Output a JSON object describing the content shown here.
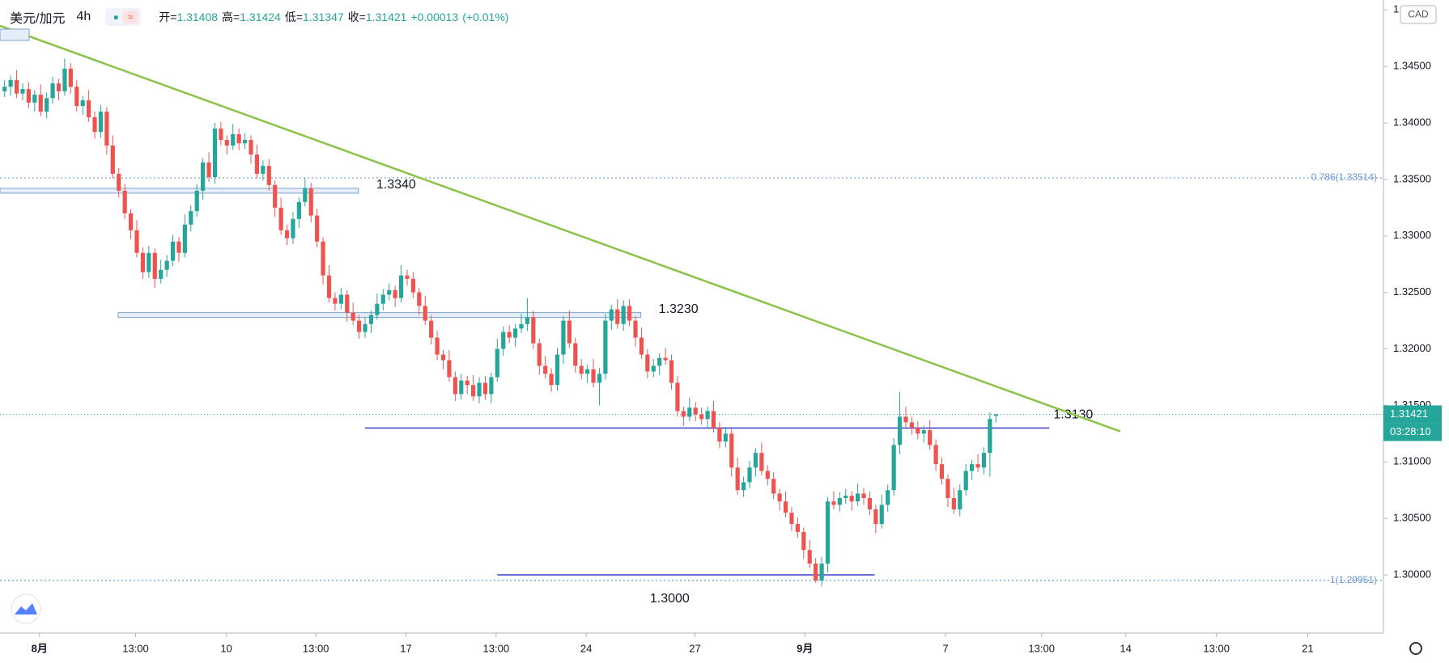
{
  "chart_data": {
    "type": "candlestick",
    "title": "美元/加元",
    "interval": "4h",
    "legend": [
      {
        "label": "开=",
        "value": 1.31408
      },
      {
        "label": "高=",
        "value": 1.31424
      },
      {
        "label": "低=",
        "value": 1.31347
      },
      {
        "label": "收=",
        "value": 1.31421
      }
    ],
    "change": "+0.00013",
    "change_pct": "(+0.01%)",
    "currency": "CAD",
    "countdown": "03:28:10",
    "last_price": 1.31421,
    "up_color": "#26a69a",
    "down_color": "#ef5350",
    "grid": false,
    "open": [
      1.3428,
      1.3432,
      1.3438,
      1.3426,
      1.343,
      1.3418,
      1.3425,
      1.341,
      1.3422,
      1.3435,
      1.3428,
      1.3448,
      1.3432,
      1.3415,
      1.342,
      1.3405,
      1.3392,
      1.341,
      1.338,
      1.3355,
      1.334,
      1.332,
      1.3305,
      1.3285,
      1.3268,
      1.3285,
      1.3262,
      1.327,
      1.3278,
      1.3295,
      1.3285,
      1.331,
      1.3322,
      1.334,
      1.3365,
      1.3352,
      1.3395,
      1.3385,
      1.338,
      1.339,
      1.3382,
      1.3385,
      1.3372,
      1.3355,
      1.3362,
      1.3345,
      1.3325,
      1.3305,
      1.3298,
      1.3315,
      1.333,
      1.3342,
      1.3318,
      1.3295,
      1.3265,
      1.3245,
      1.324,
      1.3248,
      1.3232,
      1.3225,
      1.3215,
      1.3222,
      1.323,
      1.324,
      1.3248,
      1.3252,
      1.3245,
      1.3265,
      1.3262,
      1.325,
      1.3238,
      1.3225,
      1.321,
      1.3195,
      1.319,
      1.3175,
      1.316,
      1.3172,
      1.3168,
      1.3158,
      1.317,
      1.316,
      1.3175,
      1.32,
      1.3215,
      1.321,
      1.3218,
      1.3222,
      1.3228,
      1.3205,
      1.3185,
      1.3178,
      1.3168,
      1.3195,
      1.3225,
      1.3205,
      1.3185,
      1.3178,
      1.3182,
      1.317,
      1.3178,
      1.3225,
      1.3235,
      1.3222,
      1.3238,
      1.3225,
      1.321,
      1.3195,
      1.318,
      1.3185,
      1.3192,
      1.319,
      1.317,
      1.3145,
      1.314,
      1.3148,
      1.3142,
      1.3138,
      1.3145,
      1.313,
      1.3118,
      1.3125,
      1.3095,
      1.3075,
      1.3082,
      1.3095,
      1.3108,
      1.3092,
      1.3085,
      1.3072,
      1.3065,
      1.3055,
      1.3045,
      1.3038,
      1.3022,
      1.301,
      1.2995,
      1.301,
      1.3065,
      1.3062,
      1.3068,
      1.307,
      1.3065,
      1.3072,
      1.3068,
      1.3058,
      1.3045,
      1.3062,
      1.3075,
      1.3115,
      1.314,
      1.3135,
      1.313,
      1.3125,
      1.3128,
      1.3115,
      1.3098,
      1.3085,
      1.3068,
      1.3058,
      1.3075,
      1.3092,
      1.3098,
      1.3095,
      1.3108,
      1.31408
    ],
    "high": [
      1.3438,
      1.3442,
      1.3447,
      1.3435,
      1.3436,
      1.3429,
      1.3434,
      1.3427,
      1.3441,
      1.3439,
      1.3457,
      1.3453,
      1.3438,
      1.3424,
      1.3429,
      1.341,
      1.3416,
      1.3414,
      1.3389,
      1.336,
      1.3346,
      1.3324,
      1.3314,
      1.329,
      1.3291,
      1.3289,
      1.3279,
      1.3283,
      1.3301,
      1.3299,
      1.3319,
      1.3327,
      1.3346,
      1.3369,
      1.3374,
      1.34,
      1.3401,
      1.3389,
      1.3399,
      1.3395,
      1.3391,
      1.3389,
      1.3381,
      1.3367,
      1.3368,
      1.3349,
      1.3334,
      1.331,
      1.3321,
      1.3334,
      1.3351,
      1.3347,
      1.3324,
      1.3299,
      1.3274,
      1.325,
      1.3254,
      1.3252,
      1.3241,
      1.323,
      1.3228,
      1.3234,
      1.3249,
      1.3253,
      1.3258,
      1.3256,
      1.3274,
      1.327,
      1.3268,
      1.3254,
      1.3247,
      1.323,
      1.3216,
      1.3199,
      1.3199,
      1.318,
      1.3178,
      1.3176,
      1.3177,
      1.3175,
      1.3176,
      1.3179,
      1.3209,
      1.322,
      1.3221,
      1.3222,
      1.3231,
      1.3245,
      1.3234,
      1.3209,
      1.3194,
      1.3183,
      1.3201,
      1.3229,
      1.3234,
      1.321,
      1.3191,
      1.3186,
      1.3191,
      1.3183,
      1.3231,
      1.3239,
      1.3244,
      1.3243,
      1.3244,
      1.3229,
      1.3219,
      1.32,
      1.3191,
      1.3196,
      1.3201,
      1.3195,
      1.3176,
      1.3149,
      1.3157,
      1.3153,
      1.3148,
      1.3149,
      1.3154,
      1.3135,
      1.3131,
      1.3129,
      1.3104,
      1.3087,
      1.3101,
      1.3112,
      1.3117,
      1.3097,
      1.3091,
      1.3076,
      1.3074,
      1.306,
      1.3051,
      1.3042,
      1.3031,
      1.3015,
      1.3016,
      1.3069,
      1.3074,
      1.3073,
      1.3076,
      1.3074,
      1.3081,
      1.3077,
      1.3074,
      1.3062,
      1.3071,
      1.308,
      1.3121,
      1.3162,
      1.3149,
      1.314,
      1.3136,
      1.3132,
      1.3137,
      1.312,
      1.3104,
      1.3089,
      1.3077,
      1.308,
      1.3098,
      1.3102,
      1.3107,
      1.3113,
      1.3144,
      1.31424
    ],
    "low": [
      1.3423,
      1.3424,
      1.3422,
      1.342,
      1.3413,
      1.341,
      1.3406,
      1.3404,
      1.3417,
      1.342,
      1.3424,
      1.3426,
      1.341,
      1.3407,
      1.3401,
      1.3386,
      1.3387,
      1.3372,
      1.3351,
      1.3334,
      1.3315,
      1.3297,
      1.3281,
      1.3262,
      1.3263,
      1.3254,
      1.3258,
      1.3264,
      1.3273,
      1.3277,
      1.3281,
      1.3304,
      1.3317,
      1.3332,
      1.3348,
      1.3346,
      1.338,
      1.3372,
      1.3376,
      1.3376,
      1.3377,
      1.3364,
      1.3351,
      1.3349,
      1.334,
      1.3317,
      1.3301,
      1.3292,
      1.3293,
      1.3307,
      1.3326,
      1.3312,
      1.329,
      1.3257,
      1.3241,
      1.3234,
      1.3235,
      1.3224,
      1.3221,
      1.3209,
      1.321,
      1.3214,
      1.3226,
      1.3234,
      1.3243,
      1.3237,
      1.3241,
      1.3256,
      1.3245,
      1.323,
      1.3221,
      1.3204,
      1.319,
      1.3182,
      1.3171,
      1.3154,
      1.3155,
      1.316,
      1.3154,
      1.3152,
      1.3155,
      1.3152,
      1.3171,
      1.3194,
      1.3205,
      1.3202,
      1.3214,
      1.3216,
      1.32,
      1.3177,
      1.3174,
      1.3162,
      1.3163,
      1.3187,
      1.3201,
      1.3179,
      1.3173,
      1.317,
      1.3166,
      1.315,
      1.3173,
      1.3217,
      1.3218,
      1.3216,
      1.322,
      1.3202,
      1.3191,
      1.3174,
      1.3175,
      1.3177,
      1.3186,
      1.3164,
      1.314,
      1.3132,
      1.3136,
      1.3136,
      1.3133,
      1.313,
      1.3126,
      1.3112,
      1.3113,
      1.3087,
      1.3071,
      1.3069,
      1.3077,
      1.3087,
      1.3088,
      1.3079,
      1.3067,
      1.3057,
      1.3051,
      1.3039,
      1.3033,
      1.3014,
      1.3006,
      1.2993,
      1.299,
      1.3002,
      1.3058,
      1.3056,
      1.3063,
      1.3057,
      1.3061,
      1.3062,
      1.3053,
      1.3037,
      1.3041,
      1.3056,
      1.307,
      1.3107,
      1.3131,
      1.3124,
      1.312,
      1.3117,
      1.3111,
      1.3092,
      1.308,
      1.306,
      1.3054,
      1.3052,
      1.307,
      1.3084,
      1.3091,
      1.3089,
      1.3087,
      1.31347
    ],
    "close": [
      1.3432,
      1.3438,
      1.3426,
      1.343,
      1.3418,
      1.3425,
      1.341,
      1.3422,
      1.3435,
      1.3428,
      1.3448,
      1.3432,
      1.3415,
      1.342,
      1.3405,
      1.3392,
      1.341,
      1.338,
      1.3355,
      1.334,
      1.332,
      1.3305,
      1.3285,
      1.3268,
      1.3285,
      1.3262,
      1.327,
      1.3278,
      1.3295,
      1.3285,
      1.331,
      1.3322,
      1.334,
      1.3365,
      1.3352,
      1.3395,
      1.3385,
      1.338,
      1.339,
      1.3382,
      1.3385,
      1.3372,
      1.3355,
      1.3362,
      1.3345,
      1.3325,
      1.3305,
      1.3298,
      1.3315,
      1.333,
      1.3342,
      1.3318,
      1.3295,
      1.3265,
      1.3245,
      1.324,
      1.3248,
      1.3232,
      1.3225,
      1.3215,
      1.3222,
      1.323,
      1.324,
      1.3248,
      1.3252,
      1.3245,
      1.3265,
      1.3262,
      1.325,
      1.3238,
      1.3225,
      1.321,
      1.3195,
      1.319,
      1.3175,
      1.316,
      1.3172,
      1.3168,
      1.3158,
      1.317,
      1.316,
      1.3175,
      1.32,
      1.3215,
      1.321,
      1.3218,
      1.3222,
      1.3228,
      1.3205,
      1.3185,
      1.3178,
      1.3168,
      1.3195,
      1.3225,
      1.3205,
      1.3185,
      1.3178,
      1.3182,
      1.317,
      1.3178,
      1.3225,
      1.3235,
      1.3222,
      1.3238,
      1.3225,
      1.321,
      1.3195,
      1.318,
      1.3185,
      1.3192,
      1.319,
      1.317,
      1.3145,
      1.314,
      1.3148,
      1.3142,
      1.3138,
      1.3145,
      1.313,
      1.3118,
      1.3125,
      1.3095,
      1.3075,
      1.3082,
      1.3095,
      1.3108,
      1.3092,
      1.3085,
      1.3072,
      1.3065,
      1.3055,
      1.3045,
      1.3038,
      1.3022,
      1.301,
      1.2995,
      1.301,
      1.3065,
      1.3062,
      1.3068,
      1.307,
      1.3065,
      1.3072,
      1.3068,
      1.3058,
      1.3045,
      1.3062,
      1.3075,
      1.3115,
      1.314,
      1.3135,
      1.313,
      1.3125,
      1.3128,
      1.3115,
      1.3098,
      1.3085,
      1.3068,
      1.3058,
      1.3075,
      1.3092,
      1.3098,
      1.3095,
      1.3108,
      1.3138,
      1.31421
    ],
    "xlim": [
      -0.77,
      229.5
    ],
    "ylim": [
      1.29485,
      1.35088
    ],
    "xticks": [
      {
        "value": 5.8,
        "label": "8月"
      },
      {
        "value": 21.8,
        "label": "13:00"
      },
      {
        "value": 36.9,
        "label": "10"
      },
      {
        "value": 51.8,
        "label": "13:00"
      },
      {
        "value": 66.8,
        "label": "17"
      },
      {
        "value": 81.8,
        "label": "13:00"
      },
      {
        "value": 96.8,
        "label": "24"
      },
      {
        "value": 114.9,
        "label": "27"
      },
      {
        "value": 133.2,
        "label": "9月"
      },
      {
        "value": 156.6,
        "label": "7"
      },
      {
        "value": 172.6,
        "label": "13:00"
      },
      {
        "value": 186.6,
        "label": "14"
      },
      {
        "value": 201.7,
        "label": "13:00"
      },
      {
        "value": 216.9,
        "label": "21"
      }
    ],
    "yticks": [
      {
        "value": 1.3,
        "label": "1.30000"
      },
      {
        "value": 1.305,
        "label": "1.30500"
      },
      {
        "value": 1.31,
        "label": "1.31000"
      },
      {
        "value": 1.315,
        "label": "1.31500"
      },
      {
        "value": 1.32,
        "label": "1.32000"
      },
      {
        "value": 1.325,
        "label": "1.32500"
      },
      {
        "value": 1.33,
        "label": "1.33000"
      },
      {
        "value": 1.335,
        "label": "1.33500"
      },
      {
        "value": 1.34,
        "label": "1.34000"
      },
      {
        "value": 1.345,
        "label": "1.34500"
      },
      {
        "value": 1.35,
        "label": "1.35000"
      }
    ],
    "levels": [
      {
        "value": 1.334,
        "label": "1.3340",
        "from": -0.77,
        "to": 58.9,
        "style": "box",
        "label_side": "right"
      },
      {
        "value": 1.323,
        "label": "1.3230",
        "from": 18.9,
        "to": 105.9,
        "style": "box",
        "label_side": "right"
      },
      {
        "value": 1.313,
        "label": "1.3130",
        "from": 60,
        "to": 173.9,
        "style": "line",
        "color": "#3f3fc8",
        "label_side": "above"
      },
      {
        "value": 1.3,
        "label": "1.3000",
        "from": 82,
        "to": 144.8,
        "style": "line",
        "color": "#3f3fc8",
        "label_side": "below"
      }
    ],
    "fib_levels": [
      {
        "value": 1.33514,
        "label": "0.786(1.33514)"
      },
      {
        "value": 1.29951,
        "label": "1(1.29951)"
      }
    ],
    "fib_color": "#6d9ad6",
    "trendline": {
      "from": [
        -0.77,
        1.3486
      ],
      "to": [
        185.7,
        1.3127
      ],
      "color": "#8bc34a"
    }
  }
}
